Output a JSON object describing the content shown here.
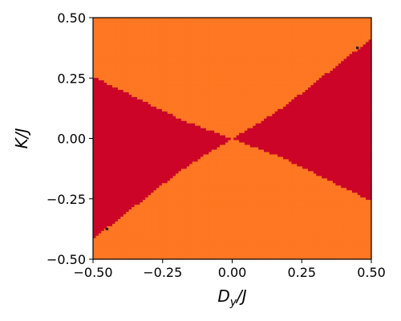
{
  "chart_data": {
    "type": "heatmap",
    "title": "",
    "xlabel": "D_y/J",
    "xlabel_main": "D",
    "xlabel_sub": "y",
    "xlabel_tail": "/J",
    "ylabel": "K/J",
    "xlim": [
      -0.5,
      0.5
    ],
    "ylim": [
      -0.5,
      0.5
    ],
    "x_ticks": [
      -0.5,
      -0.25,
      0.0,
      0.25,
      0.5
    ],
    "y_ticks": [
      -0.5,
      -0.25,
      0.0,
      0.25,
      0.5
    ],
    "x_tick_labels": [
      "−0.50",
      "−0.25",
      "0.00",
      "0.25",
      "0.50"
    ],
    "y_tick_labels": [
      "−0.50",
      "−0.25",
      "0.00",
      "0.25",
      "0.50"
    ],
    "grid": false,
    "grid_size": 101,
    "phases": [
      {
        "id": 0,
        "color": "#FF7722"
      },
      {
        "id": 1,
        "color": "#CC0528"
      },
      {
        "id": 2,
        "color": "#2A1A1A"
      }
    ],
    "boundary": {
      "description": "K/J = a*|D_y/J| + b*(D_y/J)^2 separates phases",
      "points": [
        {
          "x": 0.0,
          "y": 0.0
        },
        {
          "x": 0.05,
          "y": 0.035
        },
        {
          "x": 0.1,
          "y": 0.07
        },
        {
          "x": 0.15,
          "y": 0.105
        },
        {
          "x": 0.2,
          "y": 0.145
        },
        {
          "x": 0.25,
          "y": 0.19
        },
        {
          "x": 0.3,
          "y": 0.235
        },
        {
          "x": 0.35,
          "y": 0.28
        },
        {
          "x": 0.4,
          "y": 0.325
        },
        {
          "x": 0.45,
          "y": 0.37
        },
        {
          "x": 0.5,
          "y": 0.42
        }
      ],
      "inner_phase": 1,
      "outer_phase": 0
    },
    "special_points": [
      {
        "x": 0.45,
        "y": 0.375,
        "phase": 2
      },
      {
        "x": -0.45,
        "y": -0.375,
        "phase": 2
      }
    ]
  }
}
